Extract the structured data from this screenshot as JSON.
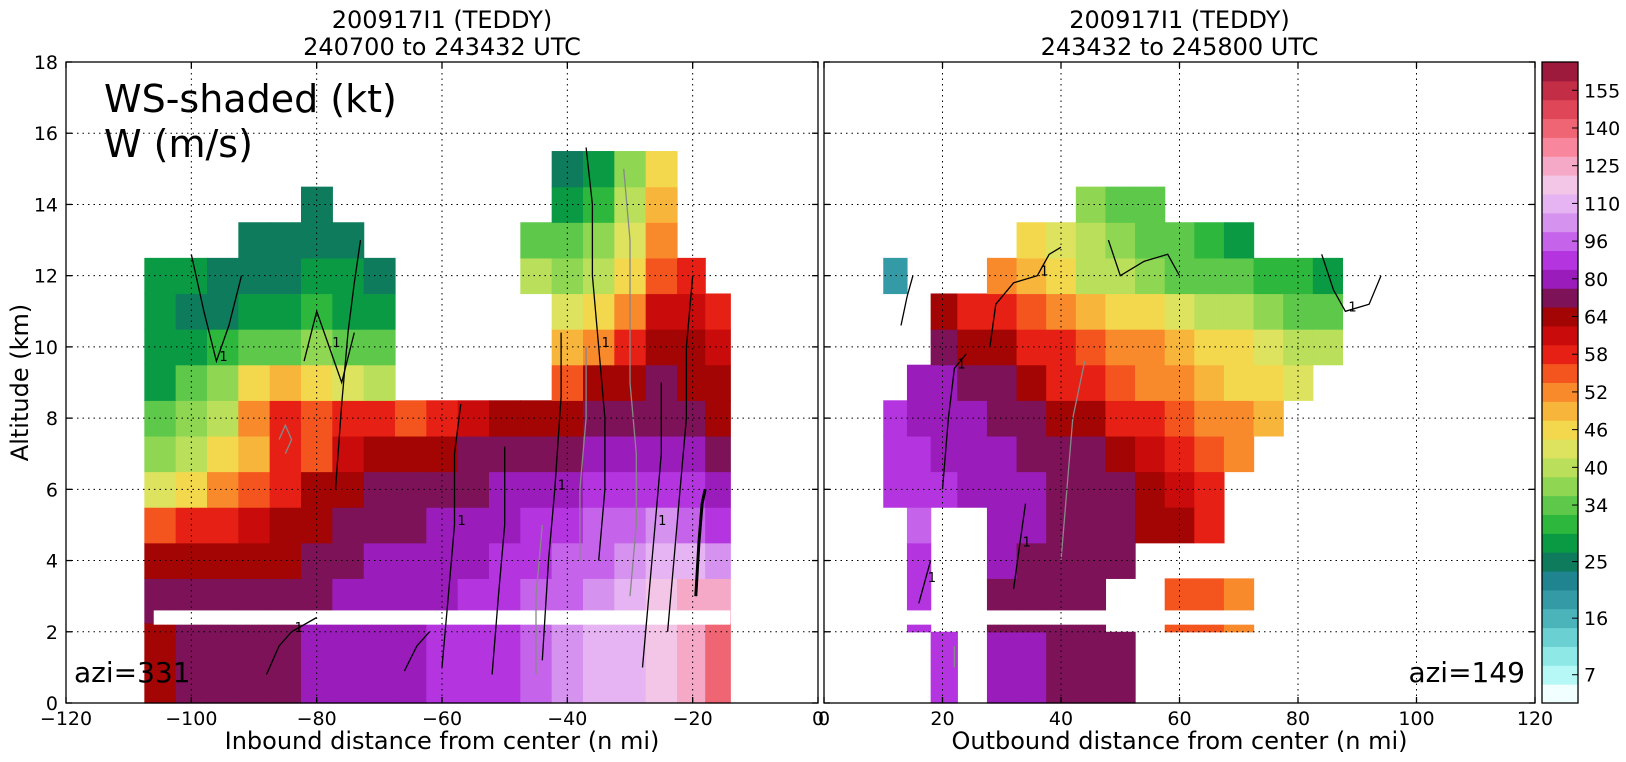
{
  "chart_data": [
    {
      "type": "heatmap",
      "title_line1": "200917I1 (TEDDY)",
      "title_line2": "240700 to 243432 UTC",
      "xlabel": "Inbound distance from center (n mi)",
      "ylabel": "Altitude (km)",
      "xlim": [
        -120,
        0
      ],
      "ylim": [
        0,
        18
      ],
      "xticks": [
        -120,
        -100,
        -80,
        -60,
        -40,
        -20,
        0
      ],
      "yticks": [
        0,
        2,
        4,
        6,
        8,
        10,
        12,
        14,
        16,
        18
      ],
      "grid": true,
      "annotation_line1": "WS-shaded (kt)",
      "annotation_line2": "W (m/s)",
      "azimuth_label": "azi=331",
      "contour_label": "1",
      "ws_field": {
        "x": [
          -105,
          -100,
          -95,
          -90,
          -85,
          -80,
          -75,
          -70,
          -65,
          -60,
          -55,
          -50,
          -45,
          -40,
          -35,
          -30,
          -25,
          -20,
          -16
        ],
        "y": [
          0.5,
          1.5,
          3,
          4,
          5,
          6,
          7,
          8,
          9,
          10,
          11,
          12,
          13,
          14,
          15
        ],
        "values": [
          [
            70,
            72,
            74,
            76,
            78,
            80,
            82,
            84,
            86,
            88,
            90,
            95,
            100,
            105,
            110,
            115,
            120,
            130,
            140
          ],
          [
            70,
            72,
            74,
            76,
            78,
            80,
            82,
            84,
            86,
            88,
            90,
            95,
            100,
            105,
            110,
            115,
            120,
            130,
            140
          ],
          [
            72,
            74,
            74,
            76,
            76,
            78,
            80,
            82,
            84,
            86,
            88,
            92,
            96,
            100,
            106,
            110,
            118,
            125,
            128
          ],
          [
            70,
            68,
            66,
            66,
            68,
            72,
            76,
            80,
            82,
            84,
            86,
            90,
            94,
            98,
            102,
            106,
            110,
            112,
            108
          ],
          [
            56,
            58,
            60,
            62,
            66,
            70,
            74,
            76,
            78,
            80,
            82,
            86,
            90,
            94,
            96,
            100,
            104,
            100,
            90
          ],
          [
            44,
            48,
            52,
            56,
            60,
            64,
            68,
            72,
            74,
            76,
            78,
            80,
            84,
            86,
            88,
            90,
            92,
            88,
            82
          ],
          [
            38,
            42,
            46,
            50,
            58,
            56,
            62,
            66,
            68,
            70,
            72,
            74,
            76,
            78,
            80,
            82,
            84,
            80,
            76
          ],
          [
            34,
            38,
            42,
            52,
            58,
            56,
            58,
            58,
            56,
            60,
            62,
            64,
            66,
            70,
            72,
            74,
            78,
            76,
            70
          ],
          [
            30,
            34,
            38,
            46,
            50,
            48,
            44,
            40,
            null,
            null,
            null,
            null,
            null,
            56,
            64,
            68,
            72,
            70,
            66
          ],
          [
            28,
            30,
            32,
            34,
            36,
            38,
            36,
            34,
            null,
            null,
            null,
            null,
            null,
            50,
            54,
            60,
            66,
            66,
            62
          ],
          [
            28,
            26,
            26,
            28,
            30,
            32,
            30,
            28,
            null,
            null,
            null,
            null,
            null,
            44,
            48,
            54,
            62,
            62,
            58
          ],
          [
            30,
            28,
            26,
            25,
            26,
            28,
            28,
            26,
            null,
            null,
            null,
            null,
            40,
            38,
            42,
            48,
            56,
            58,
            null
          ],
          [
            null,
            null,
            null,
            26,
            25,
            25,
            26,
            null,
            null,
            null,
            null,
            null,
            36,
            34,
            38,
            44,
            52,
            null,
            null
          ],
          [
            null,
            null,
            null,
            null,
            null,
            25,
            null,
            null,
            null,
            null,
            null,
            null,
            null,
            28,
            32,
            40,
            50,
            null,
            null
          ],
          [
            null,
            null,
            null,
            null,
            null,
            null,
            null,
            null,
            null,
            null,
            null,
            null,
            null,
            26,
            30,
            38,
            48,
            null,
            null
          ]
        ]
      }
    },
    {
      "type": "heatmap",
      "title_line1": "200917I1 (TEDDY)",
      "title_line2": "243432 to 245800 UTC",
      "xlabel": "Outbound distance from center (n mi)",
      "ylabel": "",
      "xlim": [
        0,
        120
      ],
      "ylim": [
        0,
        18
      ],
      "xticks": [
        0,
        20,
        40,
        60,
        80,
        100,
        120
      ],
      "grid": true,
      "azimuth_label": "azi=149",
      "contour_label": "1",
      "ws_field": {
        "x": [
          12,
          16,
          20,
          25,
          30,
          35,
          40,
          45,
          50,
          55,
          60,
          65,
          70,
          75,
          80,
          85,
          90,
          95
        ],
        "y": [
          1,
          3,
          4,
          5,
          6,
          7,
          8,
          9,
          10,
          11,
          12,
          13,
          14
        ],
        "values": [
          [
            null,
            null,
            88,
            null,
            80,
            80,
            76,
            74,
            72,
            null,
            null,
            null,
            null,
            null,
            null,
            null,
            null,
            null
          ],
          [
            null,
            94,
            null,
            null,
            78,
            76,
            74,
            72,
            null,
            null,
            56,
            56,
            52,
            null,
            null,
            null,
            null,
            null
          ],
          [
            null,
            94,
            null,
            null,
            80,
            78,
            76,
            74,
            72,
            null,
            null,
            null,
            null,
            null,
            null,
            null,
            null,
            null
          ],
          [
            null,
            96,
            null,
            null,
            82,
            80,
            78,
            76,
            74,
            70,
            66,
            60,
            null,
            null,
            null,
            null,
            null,
            null
          ],
          [
            92,
            90,
            88,
            86,
            82,
            80,
            78,
            76,
            72,
            68,
            62,
            58,
            null,
            null,
            null,
            null,
            null,
            null
          ],
          [
            90,
            88,
            86,
            84,
            80,
            78,
            76,
            72,
            68,
            62,
            58,
            56,
            54,
            null,
            null,
            null,
            null,
            null
          ],
          [
            88,
            86,
            84,
            80,
            78,
            74,
            70,
            64,
            60,
            58,
            56,
            54,
            52,
            50,
            null,
            null,
            null,
            null
          ],
          [
            null,
            84,
            80,
            76,
            72,
            66,
            60,
            58,
            56,
            54,
            52,
            50,
            48,
            46,
            44,
            null,
            null,
            null
          ],
          [
            null,
            null,
            76,
            70,
            64,
            60,
            58,
            56,
            54,
            52,
            50,
            48,
            46,
            44,
            42,
            40,
            null,
            null
          ],
          [
            null,
            null,
            66,
            60,
            58,
            56,
            52,
            50,
            48,
            46,
            44,
            42,
            40,
            38,
            36,
            36,
            null,
            null
          ],
          [
            20,
            null,
            null,
            null,
            54,
            50,
            46,
            42,
            40,
            38,
            36,
            36,
            34,
            32,
            32,
            30,
            null,
            null
          ],
          [
            null,
            null,
            null,
            null,
            null,
            46,
            44,
            40,
            38,
            36,
            34,
            32,
            30,
            null,
            null,
            null,
            null,
            null
          ],
          [
            null,
            null,
            null,
            null,
            null,
            null,
            null,
            38,
            36,
            34,
            null,
            null,
            null,
            null,
            null,
            null,
            null,
            null
          ]
        ]
      }
    },
    {
      "type": "colorbar",
      "tick_labels": [
        "7",
        "16",
        "25",
        "34",
        "40",
        "46",
        "52",
        "58",
        "64",
        "80",
        "96",
        "110",
        "125",
        "140",
        "155"
      ],
      "levels": [
        3,
        7,
        10,
        13,
        16,
        19,
        22,
        25,
        28,
        31,
        34,
        37,
        40,
        43,
        46,
        49,
        52,
        55,
        58,
        61,
        64,
        72,
        80,
        88,
        96,
        103,
        110,
        118,
        125,
        133,
        140,
        148,
        155,
        162
      ],
      "colors": [
        "#f2ffff",
        "#b6f8f5",
        "#8de8e6",
        "#6ad0d2",
        "#4bb4bb",
        "#349aa5",
        "#208390",
        "#0e7c5c",
        "#0a9a44",
        "#2db83d",
        "#5ec84b",
        "#8fd653",
        "#b9df5b",
        "#dde35e",
        "#f3d84d",
        "#f8b53b",
        "#f88a2c",
        "#f4551f",
        "#e62014",
        "#c90b0b",
        "#a30404",
        "#7d1258",
        "#9a1cba",
        "#b435e0",
        "#c564ea",
        "#d692ef",
        "#e6b4f2",
        "#f3c5e6",
        "#f6a9c6",
        "#f8879d",
        "#ef6574",
        "#df4658",
        "#c42d46",
        "#9e1a3c"
      ]
    }
  ]
}
